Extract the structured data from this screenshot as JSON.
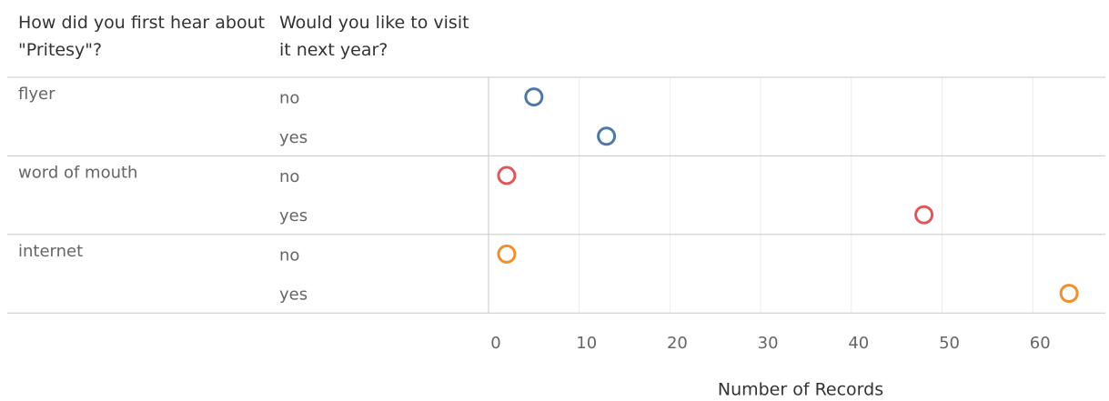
{
  "chart_data": {
    "type": "dot",
    "row_headers": [
      "How did you first hear about \"Pritesy\"?",
      "Would you like to visit it next year?"
    ],
    "series": [
      {
        "name": "flyer",
        "color": "#4e79a7",
        "categories": [
          "no",
          "yes"
        ],
        "values": [
          5,
          13
        ]
      },
      {
        "name": "word of mouth",
        "color": "#e15759",
        "categories": [
          "no",
          "yes"
        ],
        "values": [
          2,
          48
        ]
      },
      {
        "name": "internet",
        "color": "#f28e2b",
        "categories": [
          "no",
          "yes"
        ],
        "values": [
          2,
          64
        ]
      }
    ],
    "x_label": "Number of Records",
    "xlim": [
      0,
      68
    ],
    "xticks": [
      0,
      10,
      20,
      30,
      40,
      50,
      60
    ],
    "grid": true
  }
}
